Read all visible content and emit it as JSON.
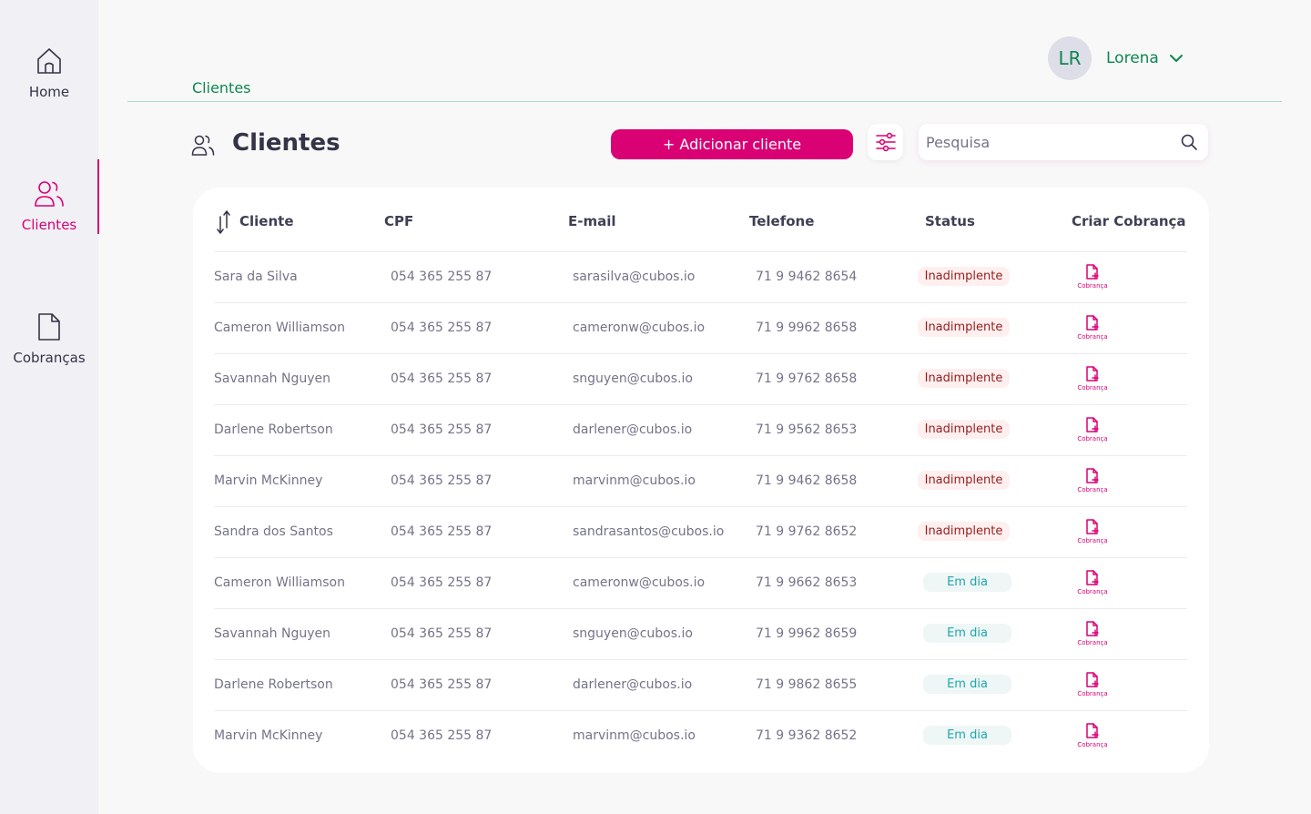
{
  "sidebar": {
    "items": [
      {
        "label": "Home",
        "icon": "home-icon"
      },
      {
        "label": "Clientes",
        "icon": "users-icon",
        "active": true
      },
      {
        "label": "Cobranças",
        "icon": "document-icon"
      }
    ]
  },
  "header": {
    "user_initials": "LR",
    "user_name": "Lorena",
    "breadcrumb": "Clientes"
  },
  "page": {
    "title": "Clientes",
    "add_button": "+ Adicionar cliente",
    "search_placeholder": "Pesquisa"
  },
  "table": {
    "columns": [
      "Cliente",
      "CPF",
      "E-mail",
      "Telefone",
      "Status",
      "Criar Cobrança"
    ],
    "charge_label": "Cobrança",
    "rows": [
      {
        "name": "Sara da Silva",
        "cpf": "054 365 255 87",
        "email": "sarasilva@cubos.io",
        "phone": "71 9 9462 8654",
        "status": "Inadimplente",
        "status_type": "late"
      },
      {
        "name": "Cameron Williamson",
        "cpf": "054 365 255 87",
        "email": "cameronw@cubos.io",
        "phone": "71 9 9962 8658",
        "status": "Inadimplente",
        "status_type": "late"
      },
      {
        "name": "Savannah Nguyen",
        "cpf": "054 365 255 87",
        "email": "snguyen@cubos.io",
        "phone": "71 9 9762 8658",
        "status": "Inadimplente",
        "status_type": "late"
      },
      {
        "name": "Darlene Robertson",
        "cpf": "054 365 255 87",
        "email": "darlener@cubos.io",
        "phone": "71 9 9562 8653",
        "status": "Inadimplente",
        "status_type": "late"
      },
      {
        "name": "Marvin McKinney",
        "cpf": "054 365 255 87",
        "email": "marvinm@cubos.io",
        "phone": "71 9 9462 8658",
        "status": "Inadimplente",
        "status_type": "late"
      },
      {
        "name": "Sandra dos Santos",
        "cpf": "054 365 255 87",
        "email": "sandrasantos@cubos.io",
        "phone": "71 9 9762 8652",
        "status": "Inadimplente",
        "status_type": "late"
      },
      {
        "name": "Cameron Williamson",
        "cpf": "054 365 255 87",
        "email": "cameronw@cubos.io",
        "phone": "71 9 9662 8653",
        "status": "Em dia",
        "status_type": "ok"
      },
      {
        "name": "Savannah Nguyen",
        "cpf": "054 365 255 87",
        "email": "snguyen@cubos.io",
        "phone": "71 9 9962 8659",
        "status": "Em dia",
        "status_type": "ok"
      },
      {
        "name": "Darlene Robertson",
        "cpf": "054 365 255 87",
        "email": "darlener@cubos.io",
        "phone": "71 9 9862 8655",
        "status": "Em dia",
        "status_type": "ok"
      },
      {
        "name": "Marvin McKinney",
        "cpf": "054 365 255 87",
        "email": "marvinm@cubos.io",
        "phone": "71 9 9362 8652",
        "status": "Em dia",
        "status_type": "ok"
      }
    ]
  },
  "colors": {
    "accent": "#da0175",
    "green": "#0e8750",
    "late_bg": "#ffefef",
    "late_text": "#971d1d",
    "ok_bg": "#eef6f6",
    "ok_text": "#1fa7af"
  }
}
